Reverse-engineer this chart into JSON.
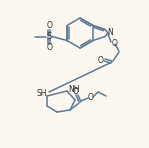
{
  "bg_color": "#fcf8f0",
  "lc": "#5a7a9a",
  "tc": "#2a2a2a",
  "lw": 1.1,
  "figsize": [
    1.49,
    1.48
  ],
  "dpi": 100,
  "xlim": [
    0,
    149
  ],
  "ylim": [
    0,
    148
  ]
}
